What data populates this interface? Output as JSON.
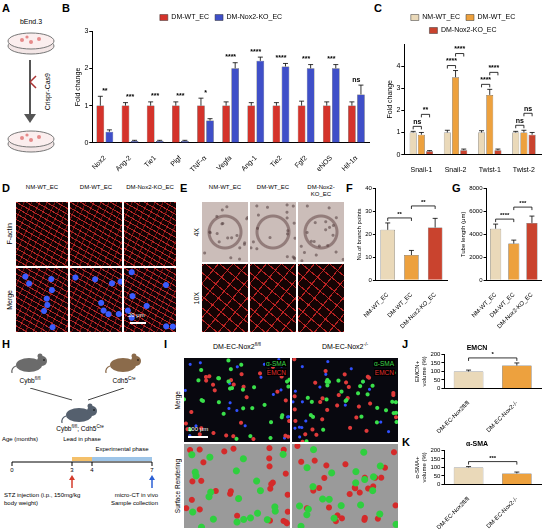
{
  "chart_data": [
    {
      "panel": "B",
      "type": "bar",
      "y_label": "Fold change",
      "categories": [
        "Nox2",
        "Ang-2",
        "Tie1",
        "Plgf",
        "TNF-α",
        "Vegfa",
        "Ang-1",
        "Tie2",
        "Fgf2",
        "eNOS",
        "Hif-1α"
      ],
      "series": [
        {
          "name": "DM-WT_EC",
          "color": "#d4332b",
          "values": [
            1,
            1,
            1,
            1,
            1,
            1,
            1,
            1,
            1,
            1,
            1
          ],
          "errors": [
            0.25,
            0.08,
            0.1,
            0.1,
            0.2,
            0.1,
            0.08,
            0.08,
            0.12,
            0.1,
            0.1
          ]
        },
        {
          "name": "DM-Nox2-KO_EC",
          "color": "#3f4fc8",
          "values": [
            0.3,
            0.05,
            0.05,
            0.05,
            0.6,
            2.0,
            2.2,
            2.05,
            2.0,
            2.0,
            1.3
          ],
          "errors": [
            0.05,
            0.02,
            0.02,
            0.02,
            0.05,
            0.15,
            0.1,
            0.08,
            0.1,
            0.1,
            0.25
          ]
        }
      ],
      "ylim": [
        0,
        3
      ],
      "yticks": [
        0,
        1,
        2,
        3
      ],
      "grid": false,
      "legend": "top",
      "annotations": [
        {
          "category": "Nox2",
          "text": "**"
        },
        {
          "category": "Ang-2",
          "text": "***"
        },
        {
          "category": "Tie1",
          "text": "***"
        },
        {
          "category": "Plgf",
          "text": "***"
        },
        {
          "category": "TNF-α",
          "text": "*"
        },
        {
          "category": "Vegfa",
          "text": "****"
        },
        {
          "category": "Ang-1",
          "text": "****"
        },
        {
          "category": "Tie2",
          "text": "****"
        },
        {
          "category": "Fgf2",
          "text": "***"
        },
        {
          "category": "eNOS",
          "text": "***"
        },
        {
          "category": "Hif-1α",
          "text": "ns"
        }
      ]
    },
    {
      "panel": "C",
      "type": "bar",
      "y_label": "Fold change",
      "categories": [
        "Snail-1",
        "Snail-2",
        "Twist-1",
        "Twist-2"
      ],
      "series": [
        {
          "name": "NM-WT_EC",
          "color": "#ead9b9",
          "values": [
            1,
            1,
            1,
            1
          ],
          "errors": [
            0.05,
            0.1,
            0.08,
            0.05
          ]
        },
        {
          "name": "DM-WT_EC",
          "color": "#eda13e",
          "values": [
            0.9,
            3.5,
            2.7,
            1.0
          ],
          "errors": [
            0.1,
            0.3,
            0.25,
            0.1
          ]
        },
        {
          "name": "DM-Nox2-KO_EC",
          "color": "#c9432e",
          "values": [
            0.15,
            0.2,
            0.2,
            0.9
          ],
          "errors": [
            0.03,
            0.05,
            0.05,
            0.1
          ]
        }
      ],
      "ylim": [
        0,
        5
      ],
      "yticks": [
        0,
        1,
        2,
        3,
        4
      ],
      "grid": false,
      "legend": "top",
      "annotations": [
        {
          "category": "Snail-1",
          "between": [
            "NM-WT_EC",
            "DM-WT_EC"
          ],
          "text": "ns"
        },
        {
          "category": "Snail-1",
          "between": [
            "DM-WT_EC",
            "DM-Nox2-KO_EC"
          ],
          "text": "**"
        },
        {
          "category": "Snail-2",
          "between": [
            "NM-WT_EC",
            "DM-WT_EC"
          ],
          "text": "****"
        },
        {
          "category": "Snail-2",
          "between": [
            "DM-WT_EC",
            "DM-Nox2-KO_EC"
          ],
          "text": "****"
        },
        {
          "category": "Twist-1",
          "between": [
            "NM-WT_EC",
            "DM-WT_EC"
          ],
          "text": "****"
        },
        {
          "category": "Twist-1",
          "between": [
            "DM-WT_EC",
            "DM-Nox2-KO_EC"
          ],
          "text": "****"
        },
        {
          "category": "Twist-2",
          "between": [
            "NM-WT_EC",
            "DM-WT_EC"
          ],
          "text": "ns"
        },
        {
          "category": "Twist-2",
          "between": [
            "DM-WT_EC",
            "DM-Nox2-KO_EC"
          ],
          "text": "ns"
        }
      ]
    },
    {
      "panel": "F",
      "type": "bar",
      "y_label": "No.of branch points",
      "categories": [
        "NM-WT_EC",
        "DM-WT_EC",
        "DM-Nox2-KO_EC"
      ],
      "values": [
        22,
        11,
        23
      ],
      "errors": [
        3,
        2,
        4
      ],
      "colors": [
        "#ead9b9",
        "#eda13e",
        "#c9432e"
      ],
      "ylim": [
        0,
        40
      ],
      "yticks": [
        0,
        10,
        20,
        30,
        40
      ],
      "grid": false,
      "annotations": [
        {
          "between": [
            "NM-WT_EC",
            "DM-WT_EC"
          ],
          "text": "**"
        },
        {
          "between": [
            "DM-WT_EC",
            "DM-Nox2-KO_EC"
          ],
          "text": "**"
        }
      ]
    },
    {
      "panel": "G",
      "type": "bar",
      "y_label": "Tube length (μm)",
      "categories": [
        "NM-WT_EC",
        "DM-WT_EC",
        "DM-Nox2-KO_EC"
      ],
      "values": [
        4500,
        3200,
        5000
      ],
      "errors": [
        400,
        300,
        600
      ],
      "colors": [
        "#ead9b9",
        "#eda13e",
        "#c9432e"
      ],
      "ylim": [
        0,
        8000
      ],
      "yticks": [
        0,
        2000,
        4000,
        6000,
        8000
      ],
      "grid": false,
      "annotations": [
        {
          "between": [
            "NM-WT_EC",
            "DM-WT_EC"
          ],
          "text": "****"
        },
        {
          "between": [
            "DM-WT_EC",
            "DM-Nox2-KO_EC"
          ],
          "text": "***"
        }
      ]
    },
    {
      "panel": "J",
      "type": "bar",
      "title": "EMCN",
      "y_label": "EMCN+ volume (%)",
      "categories": [
        "DM-EC-Nox2fl/fl",
        "DM-EC-Nox2-/-"
      ],
      "values": [
        100,
        135
      ],
      "errors": [
        8,
        15
      ],
      "colors": [
        "#ead9b9",
        "#eda13e"
      ],
      "ylim": [
        0,
        200
      ],
      "yticks": [
        0,
        50,
        100,
        150,
        200
      ],
      "grid": false,
      "annotations": [
        {
          "between": [
            "DM-EC-Nox2fl/fl",
            "DM-EC-Nox2-/-"
          ],
          "text": "*"
        }
      ]
    },
    {
      "panel": "K",
      "type": "bar",
      "title": "α-SMA",
      "y_label": "α-SMA+ volume (%)",
      "categories": [
        "DM-EC-Nox2fl/fl",
        "DM-EC-Nox2-/-"
      ],
      "values": [
        100,
        65
      ],
      "errors": [
        5,
        8
      ],
      "colors": [
        "#ead9b9",
        "#eda13e"
      ],
      "ylim": [
        0,
        200
      ],
      "yticks": [
        0,
        50,
        100,
        150,
        200
      ],
      "grid": false,
      "annotations": [
        {
          "between": [
            "DM-EC-Nox2fl/fl",
            "DM-EC-Nox2-/-"
          ],
          "text": "***"
        }
      ]
    }
  ],
  "figure": {
    "A": {
      "panel": "A",
      "cell_line": "bEnd.3",
      "method": "Crispr-Cas9"
    },
    "D": {
      "panel": "D",
      "columns": [
        "NM-WT_EC",
        "DM-WT_EC",
        "DM-Nox2-KO_EC"
      ],
      "rows": [
        "F-actin",
        "Merge"
      ],
      "scale_bar": "20 μm"
    },
    "E": {
      "panel": "E",
      "columns": [
        "NM-WT_EC",
        "DM-WT_EC",
        "DM-Nox2-KO_EC"
      ],
      "rows": [
        "4X",
        "10X"
      ]
    },
    "H": {
      "panel": "H",
      "parents": [
        {
          "base": "Cybb",
          "sup": "fl/fl"
        },
        {
          "base": "Cdh5",
          "sup": "Cre"
        }
      ],
      "offspring": [
        {
          "base": "Cybb",
          "sup": "fl/fl"
        },
        {
          "base": "; Cdh5",
          "sup": "Cre"
        }
      ],
      "axis_label": "Age (months)",
      "ticks": [
        0,
        3,
        4,
        7
      ],
      "phases": [
        {
          "name": "Lead in phase",
          "from": 3,
          "to": 4
        },
        {
          "name": "Experimental phase",
          "from": 4,
          "to": 7
        }
      ],
      "events": [
        {
          "month": 3,
          "text": "STZ injection (i.p., 150mg/kg body weight)"
        },
        {
          "month": 7,
          "text": "micro-CT in vivo"
        },
        {
          "month": 7,
          "text": "Sample collection"
        }
      ]
    },
    "I": {
      "panel": "I",
      "columns": [
        {
          "base": "DM-EC-Nox2",
          "sup": "fl/fl"
        },
        {
          "base": "DM-EC-Nox2",
          "sup": "-/-"
        }
      ],
      "rows": [
        "Merge",
        "Surface Rendering"
      ],
      "channels": [
        {
          "name": "α-SMA",
          "color": "#3cd64a"
        },
        {
          "name": "EMCN",
          "color": "#e03030"
        }
      ],
      "scale_bar": "100 μm"
    }
  }
}
